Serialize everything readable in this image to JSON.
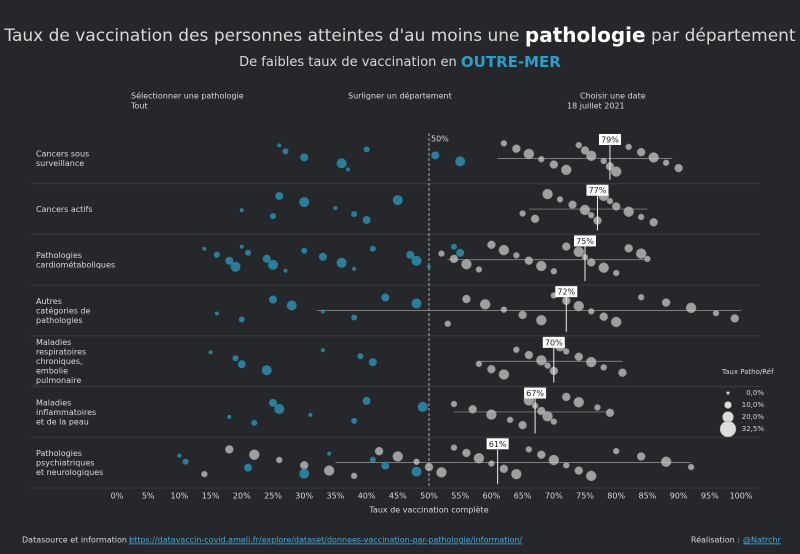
{
  "title": {
    "pre": "Taux de vaccination des personnes atteintes d'au moins une",
    "bold": "pathologie",
    "post": "par département"
  },
  "subtitle": {
    "pre": "De faibles taux de vaccination en",
    "highlight": "OUTRE-MER"
  },
  "filters": [
    {
      "label": "Sélectionner une pathologie",
      "value": "Tout"
    },
    {
      "label": "Surligner un département"
    },
    {
      "label": "Choisir une date",
      "value": "18 juillet 2021"
    }
  ],
  "footer": {
    "source_label": "Datasource et information :",
    "source_link": "https://datavaccin-covid.ameli.fr/explore/dataset/donnees-vaccination-par-pathologie/information/",
    "author_label": "Réalisation :",
    "author": "@Natrchr"
  },
  "chart_data": {
    "type": "strip",
    "categories": [
      "Cancers sous surveillance",
      "Cancers actifs",
      "Pathologies cardiométaboliques",
      "Autres catégories de pathologies",
      "Maladies respiratoires chroniques, embolie pulmonaire",
      "Maladies inflammatoires et de la peau",
      "Pathologies psychiatriques et neurologiques"
    ],
    "medians": [
      79,
      77,
      75,
      72,
      70,
      67,
      61
    ],
    "median_labels": [
      "79%",
      "77%",
      "75%",
      "72%",
      "70%",
      "67%",
      "61%"
    ],
    "ranges": [
      [
        61,
        89
      ],
      [
        66,
        85
      ],
      [
        53,
        85
      ],
      [
        32,
        100
      ],
      [
        58,
        81
      ],
      [
        54,
        79
      ],
      [
        35,
        92
      ]
    ],
    "points": [
      [
        62,
        64,
        66,
        68,
        70,
        72,
        74,
        75,
        76,
        78,
        79,
        80,
        82,
        84,
        86,
        88,
        90
      ],
      [
        65,
        67,
        69,
        71,
        73,
        75,
        76,
        77,
        78,
        79,
        80,
        82,
        84,
        86
      ],
      [
        52,
        54,
        56,
        58,
        60,
        62,
        64,
        66,
        68,
        70,
        72,
        74,
        75,
        76,
        78,
        80,
        82,
        84,
        85
      ],
      [
        53,
        56,
        59,
        62,
        65,
        68,
        70,
        72,
        74,
        76,
        78,
        80,
        84,
        88,
        92,
        96,
        99
      ],
      [
        58,
        60,
        62,
        64,
        66,
        68,
        69,
        70,
        71,
        72,
        74,
        76,
        78,
        81
      ],
      [
        54,
        57,
        60,
        63,
        65,
        66,
        67,
        68,
        69,
        70,
        72,
        74,
        77,
        79
      ],
      [
        14,
        18,
        22,
        26,
        30,
        34,
        38,
        42,
        45,
        48,
        50,
        52,
        54,
        56,
        58,
        60,
        62,
        64,
        66,
        68,
        70,
        72,
        74,
        76,
        80,
        84,
        88,
        92
      ]
    ],
    "highlight_points": [
      [
        26,
        27,
        30,
        36,
        37,
        40,
        51,
        55
      ],
      [
        20,
        25,
        26,
        30,
        35,
        38,
        40,
        45
      ],
      [
        14,
        16,
        18,
        19,
        20,
        21,
        24,
        25,
        27,
        30,
        33,
        36,
        38,
        41,
        47,
        48,
        50,
        54,
        55
      ],
      [
        16,
        20,
        25,
        28,
        33,
        38,
        43,
        48
      ],
      [
        15,
        19,
        20,
        24,
        33,
        39,
        41
      ],
      [
        18,
        22,
        25,
        26,
        31,
        38,
        40,
        49
      ],
      [
        10,
        11,
        21,
        30,
        34,
        41,
        43,
        48
      ]
    ],
    "point_color": "#c8c8c8",
    "highlight_color": "#2b8eae",
    "reference": 50,
    "reference_label": "50%",
    "xlim": [
      0,
      100
    ],
    "xticks": [
      {
        "value": 0,
        "label": "0%"
      },
      {
        "value": 5,
        "label": "5%"
      },
      {
        "value": 10,
        "label": "10%"
      },
      {
        "value": 15,
        "label": "15%"
      },
      {
        "value": 20,
        "label": "20%"
      },
      {
        "value": 25,
        "label": "25%"
      },
      {
        "value": 30,
        "label": "30%"
      },
      {
        "value": 35,
        "label": "35%"
      },
      {
        "value": 40,
        "label": "40%"
      },
      {
        "value": 45,
        "label": "45%"
      },
      {
        "value": 50,
        "label": "50%"
      },
      {
        "value": 55,
        "label": "55%"
      },
      {
        "value": 60,
        "label": "60%"
      },
      {
        "value": 65,
        "label": "65%"
      },
      {
        "value": 70,
        "label": "70%"
      },
      {
        "value": 75,
        "label": "75%"
      },
      {
        "value": 80,
        "label": "80%"
      },
      {
        "value": 85,
        "label": "85%"
      },
      {
        "value": 90,
        "label": "90%"
      },
      {
        "value": 95,
        "label": "95%"
      },
      {
        "value": 100,
        "label": "100%"
      }
    ],
    "x_label": "Taux de vaccination complète",
    "legend_title": "Taux Patho/Réf",
    "legend_sizes": [
      0,
      10,
      20,
      32.5
    ],
    "legend_labels": [
      "0,0%",
      "10,0%",
      "20,0%",
      "32,5%"
    ]
  }
}
